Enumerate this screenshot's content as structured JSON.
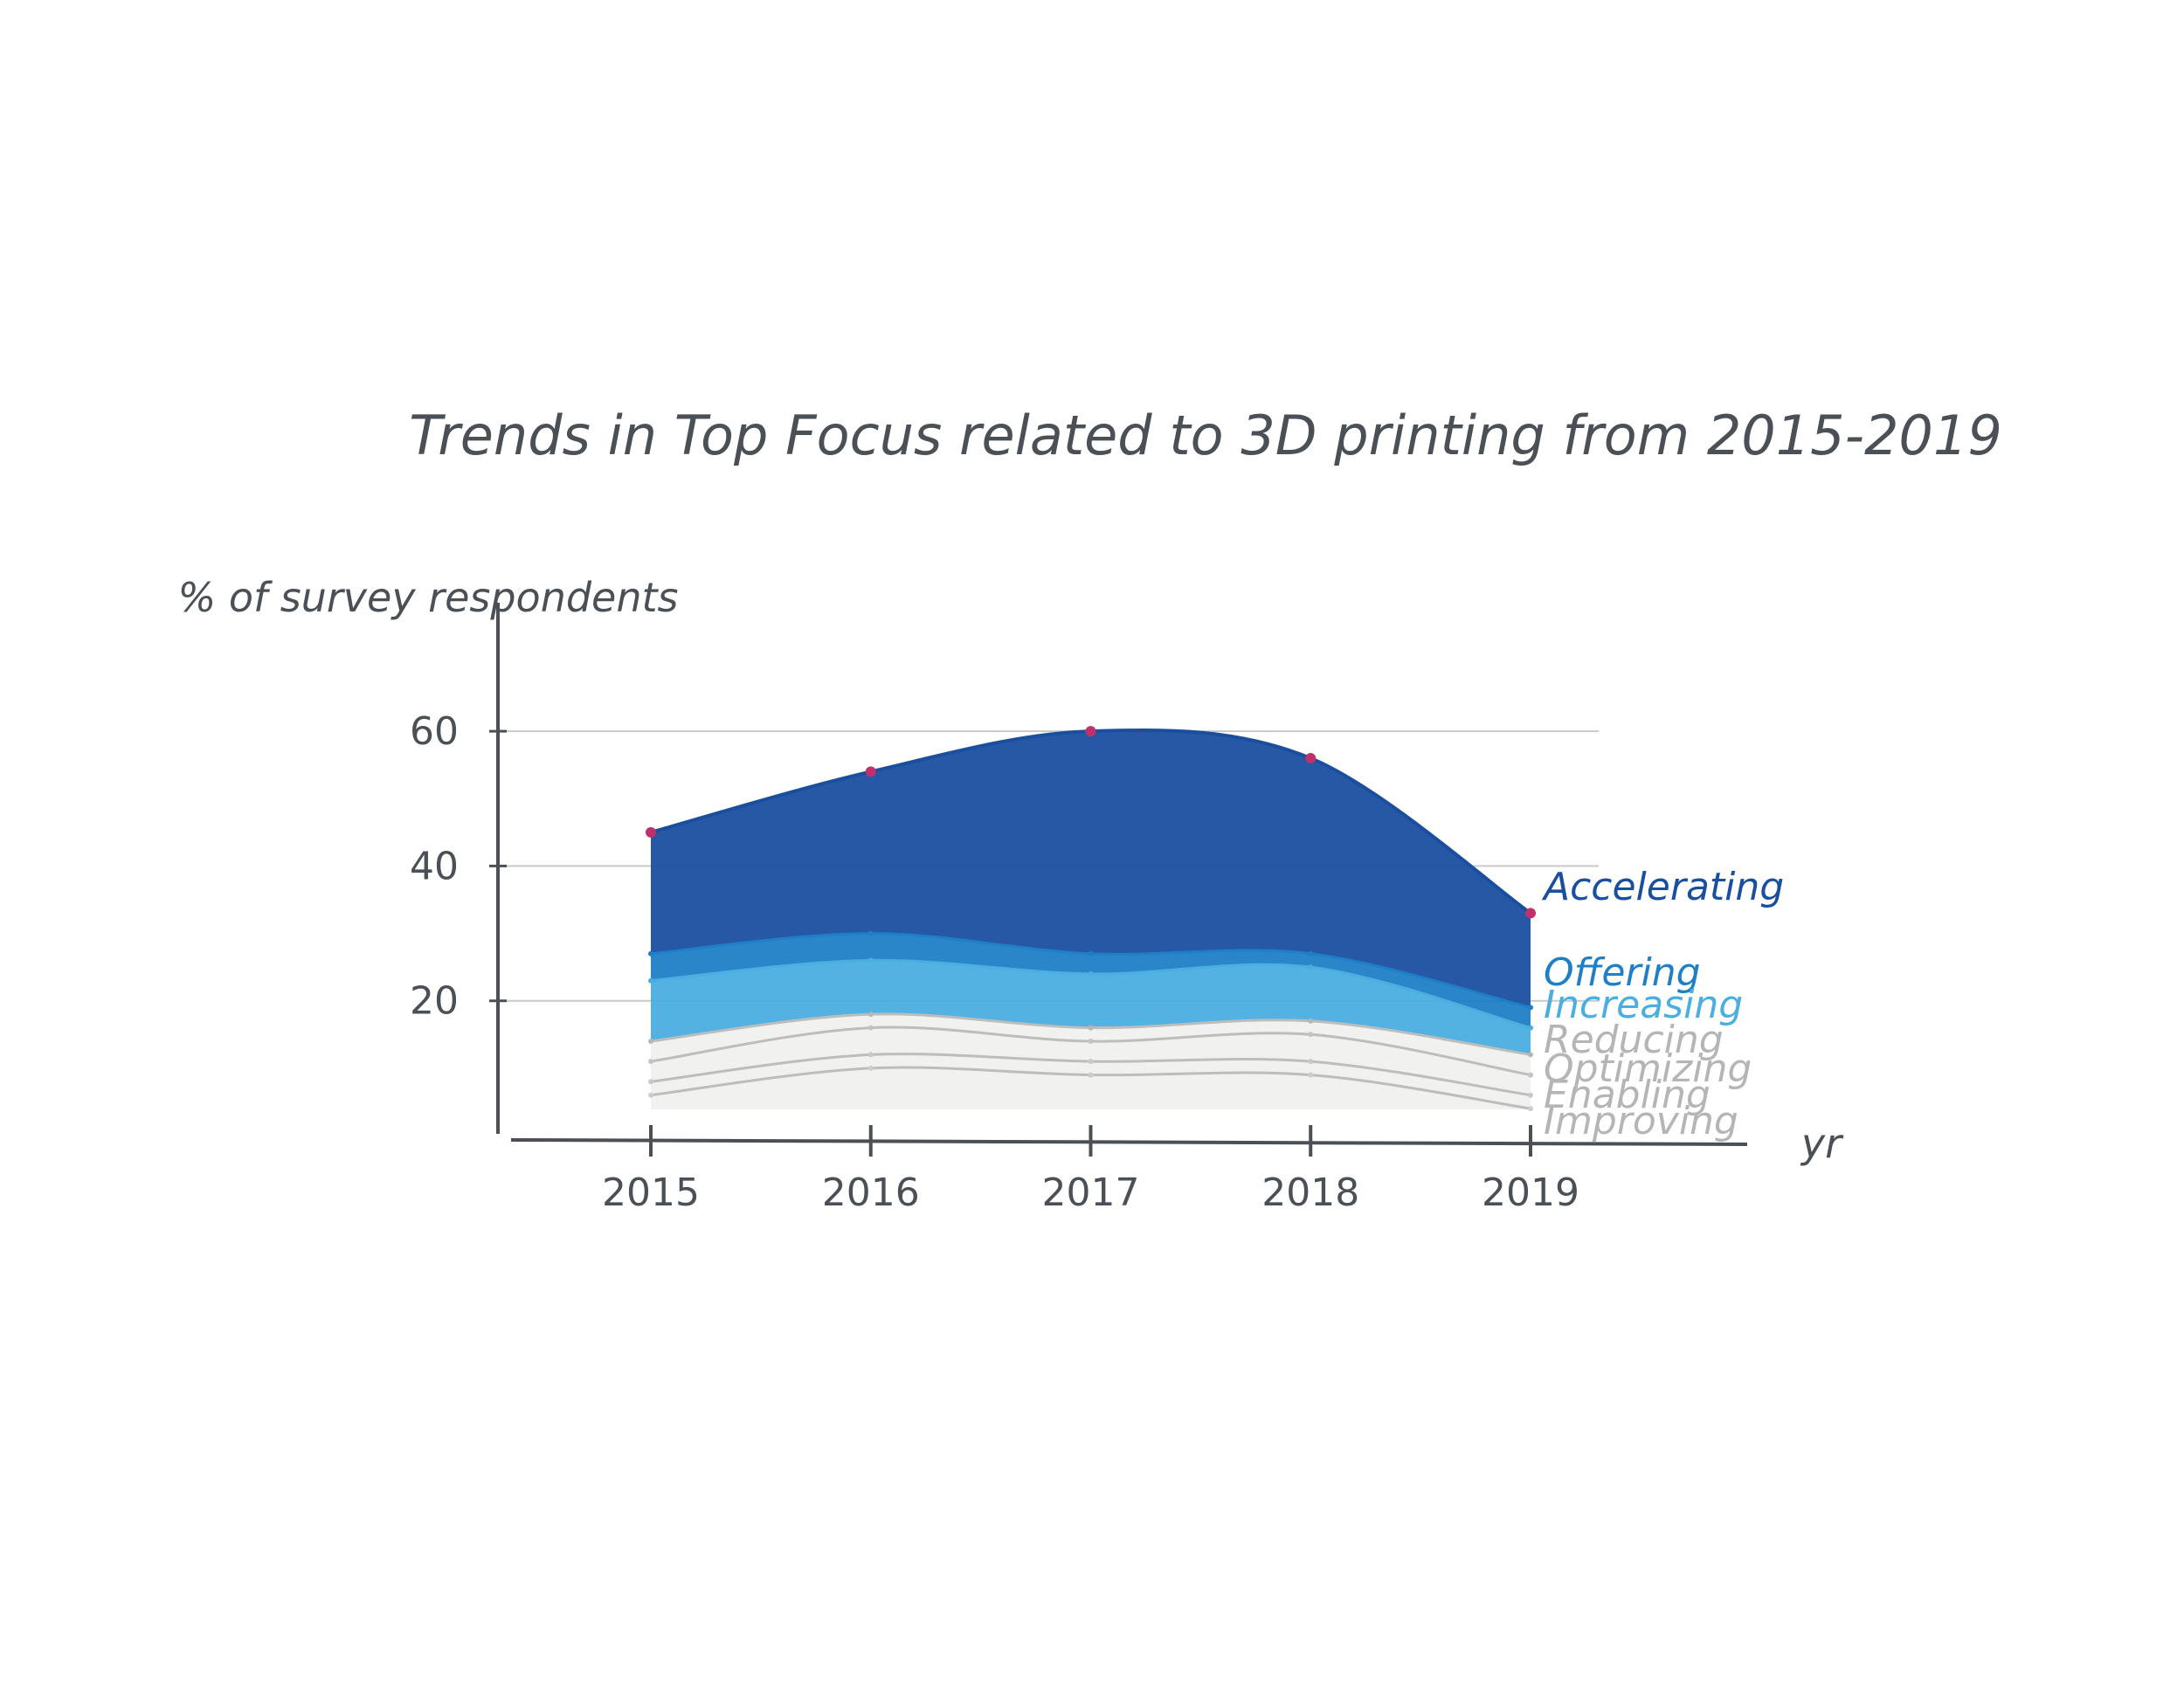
{
  "chart_data": {
    "type": "area",
    "title": "Trends in Top Focus related to 3D printing from 2015-2019",
    "ylabel": "% of survey respondents",
    "xlabel": "yr",
    "x": [
      "2015",
      "2016",
      "2017",
      "2018",
      "2019"
    ],
    "yticks": [
      "20",
      "40",
      "60"
    ],
    "ylim": [
      0,
      70
    ],
    "grid": true,
    "legend_placement": "right, labels at series ends",
    "series": [
      {
        "name": "Accelerating",
        "color": "#1a4fa0",
        "values": [
          45,
          54,
          60,
          56,
          33
        ]
      },
      {
        "name": "Offering",
        "color": "#1f7fc6",
        "values": [
          27,
          30,
          27,
          27,
          19
        ]
      },
      {
        "name": "Increasing",
        "color": "#4aaee0",
        "values": [
          23,
          26,
          24,
          25,
          16
        ]
      },
      {
        "name": "Reducing",
        "color": "#b6b6b6",
        "values": [
          14,
          18,
          16,
          17,
          12
        ]
      },
      {
        "name": "Optimizing",
        "color": "#c4c4c4",
        "values": [
          11,
          16,
          14,
          15,
          9
        ]
      },
      {
        "name": "Enabling",
        "color": "#c8c8c8",
        "values": [
          8,
          12,
          11,
          11,
          6
        ]
      },
      {
        "name": "Improving",
        "color": "#cccccc",
        "values": [
          6,
          10,
          9,
          9,
          4
        ]
      }
    ]
  }
}
